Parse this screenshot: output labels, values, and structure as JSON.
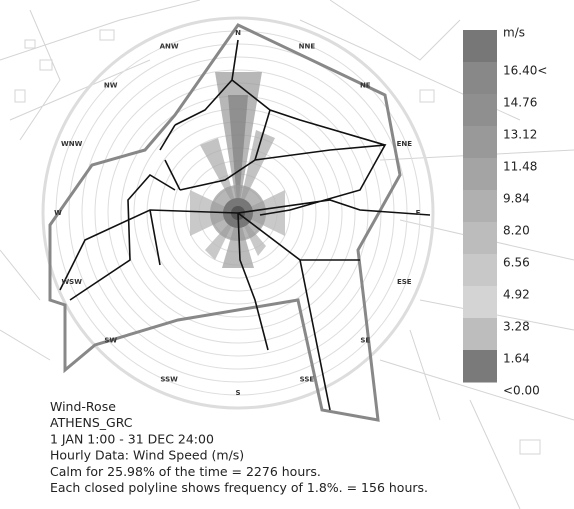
{
  "compass": {
    "labels": [
      "N",
      "NNE",
      "NE",
      "ENE",
      "E",
      "ESE",
      "SE",
      "SSE",
      "S",
      "SSW",
      "SW",
      "WSW",
      "W",
      "WNW",
      "NW",
      "ANW"
    ]
  },
  "legend": {
    "unit": "m/s",
    "labels": [
      "16.40<",
      "14.76",
      "13.12",
      "11.48",
      "9.84",
      "8.20",
      "6.56",
      "4.92",
      "3.28",
      "1.64",
      "<0.00"
    ]
  },
  "info": {
    "lines": [
      "Wind-Rose",
      "ATHENS_GRC",
      "1 JAN 1:00 - 31 DEC 24:00",
      "Hourly Data: Wind Speed (m/s)",
      "Calm for 25.98% of the time = 2276 hours.",
      "Each closed polyline shows frequency of 1.8%. = 156 hours."
    ]
  }
}
